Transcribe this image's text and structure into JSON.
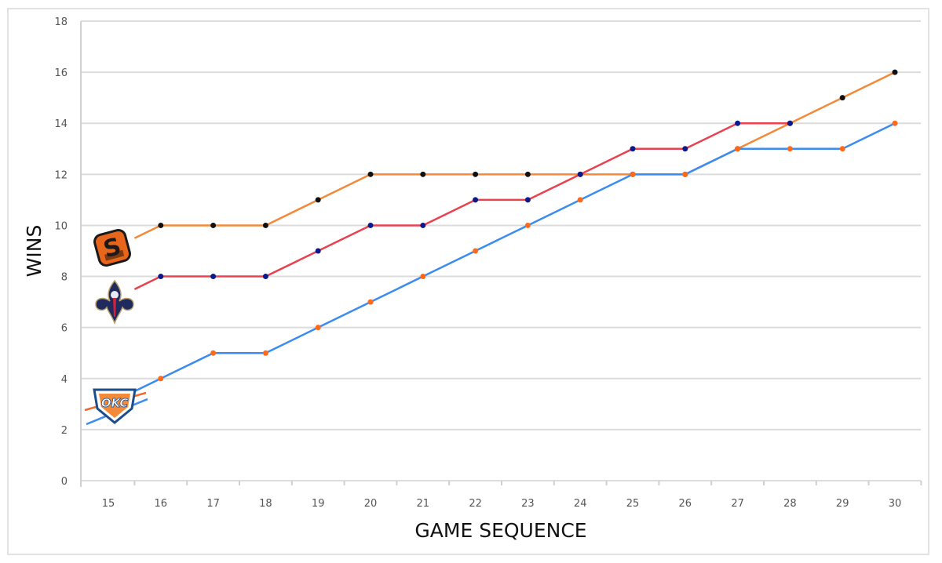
{
  "chart_data": {
    "type": "line",
    "title": "",
    "xlabel": "GAME SEQUENCE",
    "ylabel": "WINS",
    "x": [
      15,
      16,
      17,
      18,
      19,
      20,
      21,
      22,
      23,
      24,
      25,
      26,
      27,
      28,
      29,
      30
    ],
    "ylim": [
      0,
      18
    ],
    "yticks": [
      0,
      2,
      4,
      6,
      8,
      10,
      12,
      14,
      16,
      18
    ],
    "grid": true,
    "legend": "team logos at start of each line (no text legend)",
    "series": [
      {
        "name": "Phoenix Suns",
        "logo": "suns-logo",
        "line_color": "#f28a3a",
        "marker_color": "#111111",
        "values": [
          9,
          10,
          10,
          10,
          11,
          12,
          12,
          12,
          12,
          12,
          12,
          12,
          13,
          14,
          15,
          16
        ]
      },
      {
        "name": "New Orleans Pelicans",
        "logo": "pelicans-logo",
        "line_color": "#e8414f",
        "marker_color": "#0a1a8c",
        "values": [
          7,
          8,
          8,
          8,
          9,
          10,
          10,
          11,
          11,
          12,
          13,
          13,
          14,
          14,
          null,
          null
        ]
      },
      {
        "name": "Oklahoma City Thunder",
        "logo": "thunder-logo",
        "line_color": "#3b8cf0",
        "marker_color": "#ff6a1a",
        "values": [
          3,
          4,
          5,
          5,
          6,
          7,
          8,
          9,
          10,
          11,
          12,
          12,
          13,
          13,
          13,
          14
        ]
      }
    ]
  },
  "axes": {
    "x_title": "GAME SEQUENCE",
    "y_title": "WINS",
    "x_ticks": [
      "15",
      "16",
      "17",
      "18",
      "19",
      "20",
      "21",
      "22",
      "23",
      "24",
      "25",
      "26",
      "27",
      "28",
      "29",
      "30"
    ],
    "y_ticks": [
      "0",
      "2",
      "4",
      "6",
      "8",
      "10",
      "12",
      "14",
      "16",
      "18"
    ]
  },
  "logos": {
    "suns": "S",
    "thunder": "OKC"
  }
}
